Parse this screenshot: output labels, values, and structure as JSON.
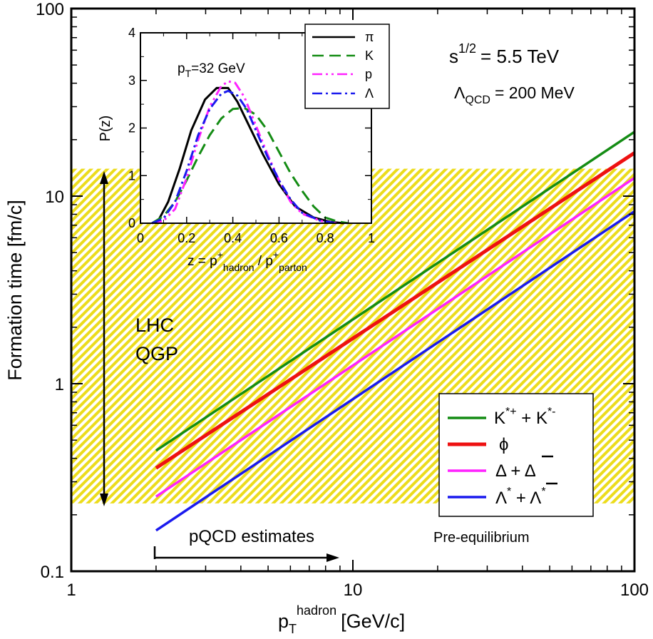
{
  "chart_data": [
    {
      "type": "line",
      "xscale": "log",
      "yscale": "log",
      "xlim": [
        1,
        100
      ],
      "ylim": [
        0.1,
        100
      ],
      "xlabel": {
        "base": "p",
        "sub": "T",
        "sup": "hadron",
        "unit": "[GeV/c]"
      },
      "ylabel": "Formation time [fm/c]",
      "x_ticks": [
        "1",
        "10",
        "100"
      ],
      "y_ticks": [
        "0.1",
        "1",
        "10",
        "100"
      ],
      "series": [
        {
          "name": "K*+ + K*-",
          "color": "#148c14",
          "width": 3.5,
          "x": [
            2,
            100
          ],
          "y": [
            0.44,
            22.0
          ]
        },
        {
          "name": "phi",
          "color": "#ee1111",
          "width": 5,
          "x": [
            2,
            100
          ],
          "y": [
            0.355,
            17.0
          ]
        },
        {
          "name": "Delta + anti-Delta",
          "color": "#ff22ff",
          "width": 3.5,
          "x": [
            2,
            100
          ],
          "y": [
            0.25,
            12.5
          ]
        },
        {
          "name": "Lambda* + anti-Lambda*",
          "color": "#1a1aee",
          "width": 3.5,
          "x": [
            2,
            100
          ],
          "y": [
            0.165,
            8.3
          ]
        }
      ],
      "shaded_band": {
        "label_line1": "LHC",
        "label_line2": "QGP",
        "ymin": 0.23,
        "ymax": 14.0,
        "color": "#ecdc1c"
      },
      "legend": {
        "position": "bottom-right"
      },
      "annotations": {
        "energy_base": "s",
        "energy_exp": "1/2",
        "energy_value": "= 5.5 TeV",
        "lambda_symbol": "Λ",
        "lambda_sub": "QCD",
        "lambda_value": "= 200 MeV",
        "pqcd": "pQCD estimates",
        "pre_equilibrium": "Pre-equilibrium"
      }
    },
    {
      "type": "line",
      "title": "inset",
      "xlim": [
        0,
        1
      ],
      "ylim": [
        0,
        4
      ],
      "x_ticks": [
        "0",
        "0.2",
        "0.4",
        "0.6",
        "0.8",
        "1"
      ],
      "y_ticks": [
        "0",
        "1",
        "2",
        "3",
        "4"
      ],
      "xlabel": {
        "lhs": "z = p",
        "sup1": "+",
        "sub1": "hadron",
        "mid": " / p",
        "sup2": "+",
        "sub2": "parton"
      },
      "ylabel": "P(z)",
      "annotation": {
        "base": "p",
        "sub": "T",
        "rest": "=32 GeV"
      },
      "legend": {
        "position": "top-right"
      },
      "series": [
        {
          "name": "π",
          "color": "#000000",
          "dash": "",
          "x": [
            0.05,
            0.08,
            0.12,
            0.17,
            0.22,
            0.28,
            0.33,
            0.38,
            0.42,
            0.47,
            0.53,
            0.6,
            0.67,
            0.75,
            0.82,
            0.88
          ],
          "y": [
            0,
            0.08,
            0.45,
            1.15,
            1.95,
            2.6,
            2.84,
            2.84,
            2.55,
            2.05,
            1.45,
            0.82,
            0.35,
            0.12,
            0.03,
            0
          ]
        },
        {
          "name": "K",
          "color": "#148c14",
          "dash": "16 8",
          "x": [
            0.05,
            0.1,
            0.15,
            0.2,
            0.25,
            0.3,
            0.35,
            0.4,
            0.45,
            0.5,
            0.55,
            0.6,
            0.65,
            0.7,
            0.75,
            0.8,
            0.85,
            0.9
          ],
          "y": [
            0,
            0.15,
            0.45,
            0.9,
            1.4,
            1.85,
            2.2,
            2.4,
            2.42,
            2.28,
            1.95,
            1.5,
            1.05,
            0.68,
            0.35,
            0.12,
            0.04,
            0
          ]
        },
        {
          "name": "p",
          "color": "#ff22ff",
          "dash": "14 5 3 5 3 5",
          "x": [
            0.05,
            0.1,
            0.15,
            0.2,
            0.25,
            0.3,
            0.35,
            0.38,
            0.41,
            0.45,
            0.5,
            0.55,
            0.6,
            0.65,
            0.7,
            0.78,
            0.85
          ],
          "y": [
            0,
            0.05,
            0.3,
            0.95,
            1.75,
            2.45,
            2.88,
            2.98,
            2.95,
            2.65,
            2.05,
            1.45,
            0.9,
            0.45,
            0.2,
            0.05,
            0
          ]
        },
        {
          "name": "Λ",
          "color": "#1a1aee",
          "dash": "14 5 3 5",
          "x": [
            0.05,
            0.1,
            0.15,
            0.2,
            0.25,
            0.3,
            0.35,
            0.38,
            0.42,
            0.46,
            0.5,
            0.55,
            0.6,
            0.65,
            0.7,
            0.78,
            0.85
          ],
          "y": [
            0,
            0.1,
            0.45,
            1.1,
            1.85,
            2.4,
            2.72,
            2.78,
            2.68,
            2.4,
            1.95,
            1.4,
            0.9,
            0.5,
            0.22,
            0.05,
            0
          ]
        }
      ]
    }
  ]
}
